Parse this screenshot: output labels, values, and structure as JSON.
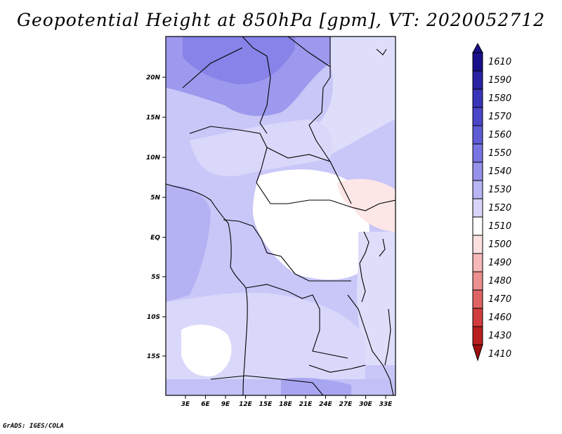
{
  "title": "Geopotential Height at 850hPa [gpm], VT: 2020052712",
  "footer": "GrADS: IGES/COLA",
  "map": {
    "lat_labels": [
      "20N",
      "15N",
      "10N",
      "5N",
      "EQ",
      "5S",
      "10S",
      "15S"
    ],
    "lon_labels": [
      "3E",
      "6E",
      "9E",
      "12E",
      "15E",
      "18E",
      "21E",
      "24E",
      "27E",
      "30E",
      "33E"
    ]
  },
  "colorbar": {
    "levels": [
      "1610",
      "1590",
      "1580",
      "1570",
      "1560",
      "1550",
      "1540",
      "1530",
      "1520",
      "1510",
      "1500",
      "1490",
      "1480",
      "1470",
      "1460",
      "1430",
      "1410"
    ],
    "colors": [
      "#1a0f8a",
      "#2a22a3",
      "#3a35b8",
      "#4b47c8",
      "#5f5cd6",
      "#7874e2",
      "#9692ec",
      "#b8b5f4",
      "#d7d6fa",
      "#ffffff",
      "#fde0e0",
      "#f6b8b8",
      "#ec8f8f",
      "#e06464",
      "#d13d3d",
      "#b81f1f",
      "#9e1010"
    ]
  }
}
